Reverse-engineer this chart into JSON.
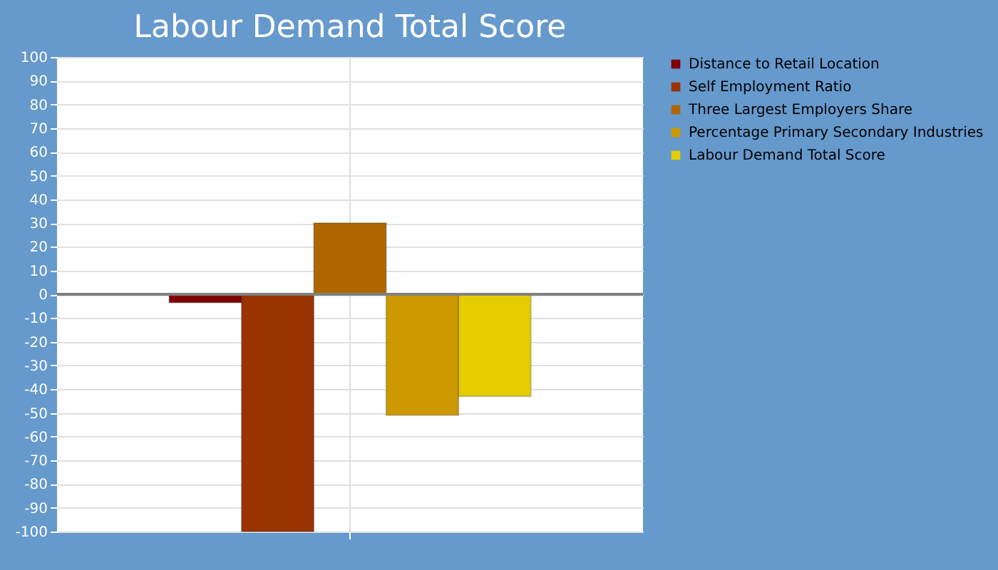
{
  "chart_data": {
    "type": "bar",
    "title": "Labour Demand Total Score",
    "categories": [
      null
    ],
    "series": [
      {
        "name": "Distance to Retail Location",
        "color": "#800000",
        "values": [
          -3.5
        ]
      },
      {
        "name": "Self Employment Ratio",
        "color": "#993300",
        "values": [
          -100
        ]
      },
      {
        "name": "Three Largest Employers Share",
        "color": "#b06600",
        "values": [
          30
        ]
      },
      {
        "name": "Percentage Primary Secondary Industries",
        "color": "#cc9900",
        "values": [
          -51
        ]
      },
      {
        "name": "Labour Demand Total Score",
        "color": "#e5cc00",
        "values": [
          -43
        ]
      }
    ],
    "ylim": [
      -100,
      100
    ],
    "yticks": [
      -100,
      -90,
      -80,
      -70,
      -60,
      -50,
      -40,
      -30,
      -20,
      -10,
      0,
      10,
      20,
      30,
      40,
      50,
      60,
      70,
      80,
      90,
      100
    ],
    "ref_lines": [
      {
        "axis": "y",
        "value": 0,
        "color": "#808080"
      }
    ],
    "grid": true,
    "legend": "right"
  }
}
